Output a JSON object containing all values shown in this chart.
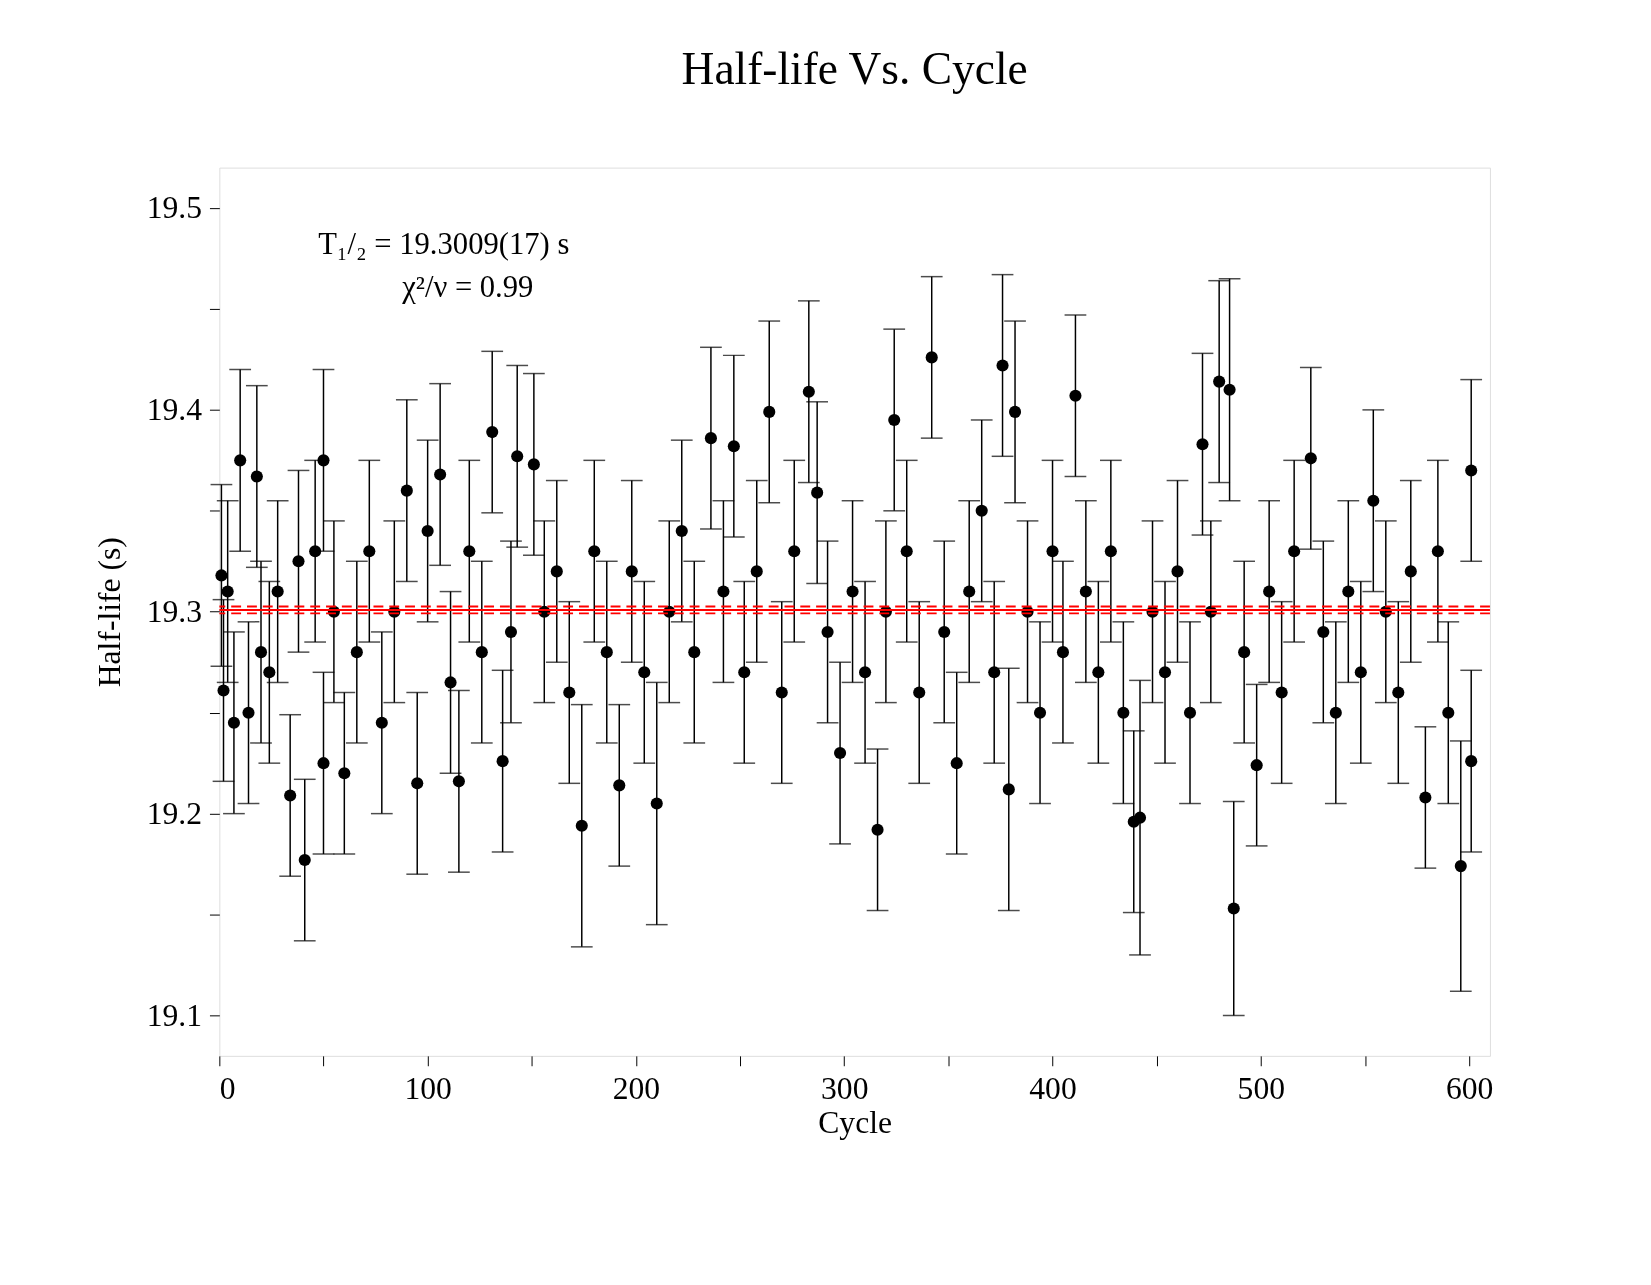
{
  "chart_data": {
    "type": "scatter",
    "title": "Half-life Vs. Cycle",
    "xlabel": "Cycle",
    "ylabel": "Half-life (s)",
    "xlim": [
      0,
      610
    ],
    "ylim": [
      19.08,
      19.52
    ],
    "xticks": [
      0,
      {
        "value": 50,
        "label": null
      },
      100,
      {
        "value": 150,
        "label": null
      },
      200,
      {
        "value": 250,
        "label": null
      },
      300,
      {
        "value": 350,
        "label": null
      },
      400,
      {
        "value": 450,
        "label": null
      },
      500,
      {
        "value": 550,
        "label": null
      },
      600
    ],
    "yticks": [
      19.1,
      {
        "value": 19.15,
        "label": null
      },
      19.2,
      {
        "value": 19.25,
        "label": null
      },
      19.3,
      {
        "value": 19.35,
        "label": null
      },
      19.4,
      {
        "value": 19.45,
        "label": null
      },
      19.5
    ],
    "grid": false,
    "marker": "circle",
    "series": [
      {
        "color": "#000000",
        "x": [
          1,
          2,
          4,
          7,
          10,
          14,
          18,
          20,
          24,
          28,
          34,
          38,
          41,
          46,
          50,
          50,
          55,
          60,
          66,
          72,
          78,
          84,
          90,
          95,
          100,
          106,
          111,
          115,
          120,
          126,
          131,
          136,
          140,
          143,
          151,
          156,
          162,
          168,
          174,
          180,
          186,
          192,
          198,
          204,
          210,
          216,
          222,
          228,
          236,
          242,
          247,
          252,
          258,
          264,
          270,
          276,
          283,
          287,
          292,
          298,
          304,
          310,
          316,
          320,
          324,
          330,
          336,
          342,
          348,
          354,
          360,
          366,
          372,
          376,
          379,
          382,
          388,
          394,
          400,
          405,
          411,
          416,
          422,
          428,
          434,
          439,
          442,
          448,
          454,
          460,
          466,
          472,
          476,
          480,
          485,
          487,
          492,
          498,
          504,
          510,
          516,
          524,
          530,
          536,
          542,
          548,
          554,
          560,
          566,
          572,
          579,
          585,
          590,
          596,
          601,
          601
        ],
        "values": [
          19.318,
          19.261,
          19.31,
          19.245,
          19.375,
          19.25,
          19.367,
          19.28,
          19.27,
          19.31,
          19.209,
          19.325,
          19.177,
          19.33,
          19.375,
          19.225,
          19.3,
          19.22,
          19.28,
          19.33,
          19.245,
          19.3,
          19.36,
          19.215,
          19.34,
          19.368,
          19.265,
          19.216,
          19.33,
          19.28,
          19.389,
          19.226,
          19.29,
          19.377,
          19.373,
          19.3,
          19.32,
          19.26,
          19.194,
          19.33,
          19.28,
          19.214,
          19.32,
          19.27,
          19.205,
          19.3,
          19.34,
          19.28,
          19.386,
          19.31,
          19.382,
          19.27,
          19.32,
          19.399,
          19.26,
          19.33,
          19.409,
          19.359,
          19.29,
          19.23,
          19.31,
          19.27,
          19.192,
          19.3,
          19.395,
          19.33,
          19.26,
          19.426,
          19.29,
          19.225,
          19.31,
          19.35,
          19.27,
          19.422,
          19.212,
          19.399,
          19.3,
          19.25,
          19.33,
          19.28,
          19.407,
          19.31,
          19.27,
          19.33,
          19.25,
          19.196,
          19.198,
          19.3,
          19.27,
          19.32,
          19.25,
          19.383,
          19.3,
          19.414,
          19.41,
          19.153,
          19.28,
          19.224,
          19.31,
          19.26,
          19.33,
          19.376,
          19.29,
          19.25,
          19.31,
          19.27,
          19.355,
          19.3,
          19.26,
          19.32,
          19.208,
          19.33,
          19.25,
          19.174,
          19.226,
          19.37
        ],
        "errors": [
          0.045,
          0.045,
          0.045,
          0.045,
          0.045,
          0.045,
          0.045,
          0.045,
          0.045,
          0.045,
          0.04,
          0.045,
          0.04,
          0.045,
          0.045,
          0.045,
          0.045,
          0.04,
          0.045,
          0.045,
          0.045,
          0.045,
          0.045,
          0.045,
          0.045,
          0.045,
          0.045,
          0.045,
          0.045,
          0.045,
          0.04,
          0.045,
          0.045,
          0.045,
          0.045,
          0.045,
          0.045,
          0.045,
          0.06,
          0.045,
          0.045,
          0.04,
          0.045,
          0.045,
          0.06,
          0.045,
          0.045,
          0.045,
          0.045,
          0.045,
          0.045,
          0.045,
          0.045,
          0.045,
          0.045,
          0.045,
          0.045,
          0.045,
          0.045,
          0.045,
          0.045,
          0.045,
          0.04,
          0.045,
          0.045,
          0.045,
          0.045,
          0.04,
          0.045,
          0.045,
          0.045,
          0.045,
          0.045,
          0.045,
          0.06,
          0.045,
          0.045,
          0.045,
          0.045,
          0.045,
          0.04,
          0.045,
          0.045,
          0.045,
          0.045,
          0.045,
          0.068,
          0.045,
          0.045,
          0.045,
          0.045,
          0.045,
          0.045,
          0.05,
          0.055,
          0.053,
          0.045,
          0.04,
          0.045,
          0.045,
          0.045,
          0.045,
          0.045,
          0.045,
          0.045,
          0.045,
          0.045,
          0.045,
          0.045,
          0.045,
          0.035,
          0.045,
          0.045,
          0.062,
          0.045,
          0.045
        ]
      }
    ],
    "ref_lines": [
      {
        "axis": "y",
        "value": 19.3009,
        "color": "#ff0000",
        "line_style": "solid"
      },
      {
        "axis": "y",
        "value": 19.2992,
        "color": "#ff0000",
        "line_style": "dashed"
      },
      {
        "axis": "y",
        "value": 19.3026,
        "color": "#ff0000",
        "line_style": "dashed"
      }
    ],
    "annotations": [
      "T₁/₂ = 19.3009(17) s",
      "χ²/ν = 0.99"
    ]
  }
}
